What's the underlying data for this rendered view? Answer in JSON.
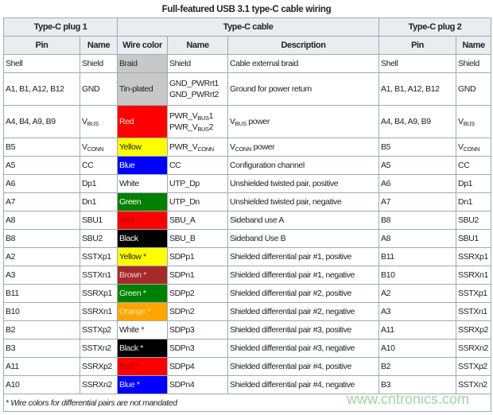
{
  "title": "Full-featured USB 3.1 type-C cable wiring",
  "group_headers": [
    "Type-C plug 1",
    "Type-C cable",
    "Type-C plug 2"
  ],
  "column_headers": [
    "Pin",
    "Name",
    "Wire color",
    "Name",
    "Description",
    "Pin",
    "Name"
  ],
  "rows": [
    {
      "pin1": "Shell",
      "name1": "Shield",
      "wire": "Braid",
      "wire_bg": "#c8c8c8",
      "wire_fg": "#222222",
      "cname": "Shield",
      "desc": "Cable external braid",
      "pin2": "Shell",
      "name2": "Shield"
    },
    {
      "pin1": "A1, B1, A12, B12",
      "name1": "GND",
      "wire": "Tin-plated",
      "wire_bg": "#c8c8c8",
      "wire_fg": "#222222",
      "cname": [
        [
          {
            "t": "GND_PWRrt1"
          }
        ],
        [
          {
            "t": "GND_PWRrt2"
          }
        ]
      ],
      "desc": "Ground for power return",
      "pin2": "A1, B1, A12, B12",
      "name2": "GND",
      "tall": true
    },
    {
      "pin1": "A4, B4, A9, B9",
      "name1": [
        [
          {
            "t": "V"
          },
          {
            "sub": "BUS"
          }
        ]
      ],
      "wire": "Red",
      "wire_bg": "#ff0000",
      "wire_fg": "#ffdddd",
      "cname": [
        [
          {
            "t": "PWR_V"
          },
          {
            "sub": "BUS"
          },
          {
            "t": "1"
          }
        ],
        [
          {
            "t": "PWR_V"
          },
          {
            "sub": "BUS"
          },
          {
            "t": "2"
          }
        ]
      ],
      "desc": [
        [
          {
            "t": "V"
          },
          {
            "sub": "BUS"
          },
          {
            "t": " power"
          }
        ]
      ],
      "pin2": "A4, B4, A9, B9",
      "name2": [
        [
          {
            "t": "V"
          },
          {
            "sub": "BUS"
          }
        ]
      ],
      "tall": true
    },
    {
      "pin1": "B5",
      "name1": [
        [
          {
            "t": "V"
          },
          {
            "sub": "CONN"
          }
        ]
      ],
      "wire": "Yellow",
      "wire_bg": "#ffff00",
      "wire_fg": "#222222",
      "cname": [
        [
          {
            "t": "PWR_V"
          },
          {
            "sub": "CONN"
          }
        ]
      ],
      "desc": [
        [
          {
            "t": "V"
          },
          {
            "sub": "CONN"
          },
          {
            "t": " power"
          }
        ]
      ],
      "pin2": "B5",
      "name2": [
        [
          {
            "t": "V"
          },
          {
            "sub": "CONN"
          }
        ]
      ]
    },
    {
      "pin1": "A5",
      "name1": "CC",
      "wire": "Blue",
      "wire_bg": "#0000ff",
      "wire_fg": "#ffffff",
      "cname": "CC",
      "desc": "Configuration channel",
      "pin2": "A5",
      "name2": "CC"
    },
    {
      "pin1": "A6",
      "name1": "Dp1",
      "wire": "White",
      "wire_bg": "#ffffff",
      "wire_fg": "#222222",
      "cname": "UTP_Dp",
      "desc": "Unshielded twisted pair, positive",
      "pin2": "A6",
      "name2": "Dp1"
    },
    {
      "pin1": "A7",
      "name1": "Dn1",
      "wire": "Green",
      "wire_bg": "#008000",
      "wire_fg": "#ffffff",
      "cname": "UTP_Dn",
      "desc": "Unshielded twisted pair, negative",
      "pin2": "A7",
      "name2": "Dn1"
    },
    {
      "pin1": "A8",
      "name1": "SBU1",
      "wire": "Red",
      "wire_bg": "#ff0000",
      "wire_fg": "#b00000",
      "cname": "SBU_A",
      "desc": "Sideband use A",
      "pin2": "B8",
      "name2": "SBU2"
    },
    {
      "pin1": "B8",
      "name1": "SBU2",
      "wire": "Black",
      "wire_bg": "#000000",
      "wire_fg": "#ffffff",
      "cname": "SBU_B",
      "desc": "Sideband Use B",
      "pin2": "A8",
      "name2": "SBU1"
    },
    {
      "pin1": "A2",
      "name1": "SSTXp1",
      "wire": "Yellow *",
      "wire_bg": "#ffff00",
      "wire_fg": "#222222",
      "cname": "SDPp1",
      "desc": "Shielded differential pair #1, positive",
      "pin2": "B11",
      "name2": "SSRXp1"
    },
    {
      "pin1": "A3",
      "name1": "SSTXn1",
      "wire": "Brown *",
      "wire_bg": "#a52a2a",
      "wire_fg": "#f0d0d0",
      "cname": "SDPn1",
      "desc": "Shielded differential pair #1, negative",
      "pin2": "B10",
      "name2": "SSRXn1"
    },
    {
      "pin1": "B11",
      "name1": "SSRXp1",
      "wire": "Green *",
      "wire_bg": "#008000",
      "wire_fg": "#e0ffe0",
      "cname": "SDPp2",
      "desc": "Shielded differential pair #2, positive",
      "pin2": "A2",
      "name2": "SSTXp1"
    },
    {
      "pin1": "B10",
      "name1": "SSRXn1",
      "wire": "Orange *",
      "wire_bg": "#ffa500",
      "wire_fg": "#ffe0a0",
      "cname": "SDPn2",
      "desc": "Shielded differential pair #2, negative",
      "pin2": "A3",
      "name2": "SSTXn1"
    },
    {
      "pin1": "B2",
      "name1": "SSTXp2",
      "wire": "White *",
      "wire_bg": "#ffffff",
      "wire_fg": "#222222",
      "cname": "SDPp3",
      "desc": "Shielded differential pair #3, positive",
      "pin2": "A11",
      "name2": "SSRXp2"
    },
    {
      "pin1": "B3",
      "name1": "SSTXn2",
      "wire": "Black *",
      "wire_bg": "#000000",
      "wire_fg": "#eeeeee",
      "cname": "SDPn3",
      "desc": "Shielded differential pair #3, negative",
      "pin2": "A10",
      "name2": "SSRXn2"
    },
    {
      "pin1": "A11",
      "name1": "SSRXp2",
      "wire": "Red *",
      "wire_bg": "#ff0000",
      "wire_fg": "#b00000",
      "cname": "SDPp4",
      "desc": "Shielded differential pair #4, positive",
      "pin2": "B2",
      "name2": "SSTXp2"
    },
    {
      "pin1": "A10",
      "name1": "SSRXn2",
      "wire": "Blue *",
      "wire_bg": "#0000ff",
      "wire_fg": "#e0e0ff",
      "cname": "SDPn4",
      "desc": "Shielded differential pair #4, negative",
      "pin2": "B3",
      "name2": "SSTXn2"
    }
  ],
  "footnote": "* Wire colors for differential pairs are not mandated",
  "watermark": "www.cntronics.com"
}
